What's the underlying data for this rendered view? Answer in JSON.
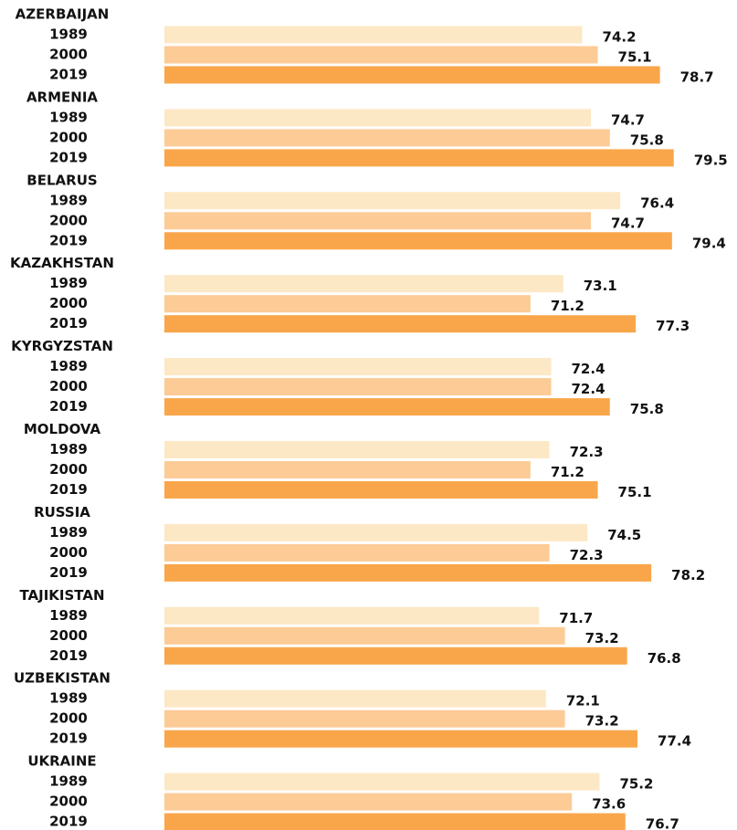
{
  "chart_data": {
    "type": "bar",
    "orientation": "horizontal",
    "categories": [
      "AZERBAIJAN",
      "ARMENIA",
      "BELARUS",
      "KAZAKHSTAN",
      "KYRGYZSTAN",
      "MOLDOVA",
      "RUSSIA",
      "TAJIKISTAN",
      "UZBEKISTAN",
      "UKRAINE"
    ],
    "series": [
      {
        "name": "1989",
        "color": "#fde8c6",
        "values": [
          74.2,
          74.7,
          76.4,
          73.1,
          72.4,
          72.3,
          74.5,
          71.7,
          72.1,
          75.2
        ]
      },
      {
        "name": "2000",
        "color": "#fccb96",
        "values": [
          75.1,
          75.8,
          74.7,
          71.2,
          72.4,
          71.2,
          72.3,
          73.2,
          73.2,
          73.6
        ]
      },
      {
        "name": "2019",
        "color": "#f9a64a",
        "values": [
          78.7,
          79.5,
          79.4,
          77.3,
          75.8,
          75.1,
          78.2,
          76.8,
          77.4,
          76.7
        ]
      }
    ],
    "xlim": [
      50,
      82
    ]
  }
}
